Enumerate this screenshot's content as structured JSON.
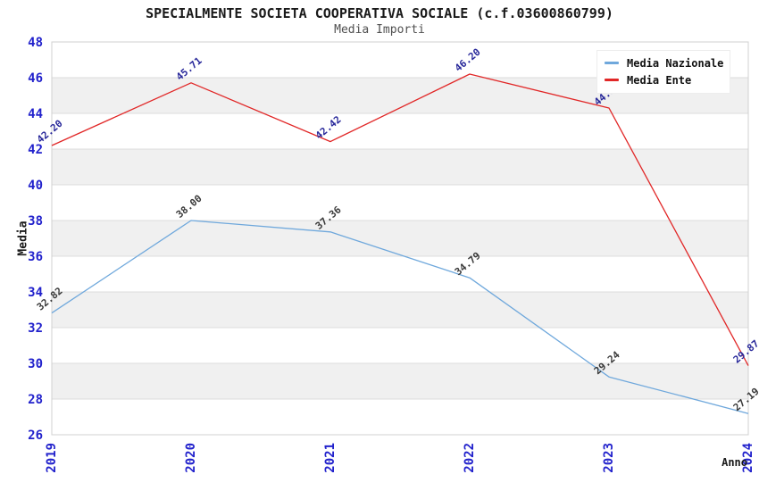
{
  "chart_data": {
    "type": "line",
    "title": "SPECIALMENTE SOCIETA COOPERATIVA SOCIALE (c.f.03600860799)",
    "subtitle": "Media Importi",
    "xlabel": "Anno",
    "ylabel": "Media",
    "categories": [
      "2019",
      "2020",
      "2021",
      "2022",
      "2023",
      "2024"
    ],
    "series": [
      {
        "name": "Media Nazionale",
        "color": "#6fa8dc",
        "label_color": "#3a3a3a",
        "values": [
          32.82,
          38.0,
          37.36,
          34.79,
          29.24,
          27.19
        ]
      },
      {
        "name": "Media Ente",
        "color": "#e12727",
        "label_color": "#28289a",
        "values": [
          42.2,
          45.71,
          42.42,
          46.2,
          44.3,
          29.87
        ]
      }
    ],
    "ylim": [
      26,
      48
    ],
    "ytick_step": 2,
    "grid": "on",
    "legend_position": "top-right",
    "band_color": "#f0f0f0",
    "grid_color": "#dcdcdc",
    "border_color": "#d0d0d0",
    "tick_label_color": "#2222cc"
  }
}
